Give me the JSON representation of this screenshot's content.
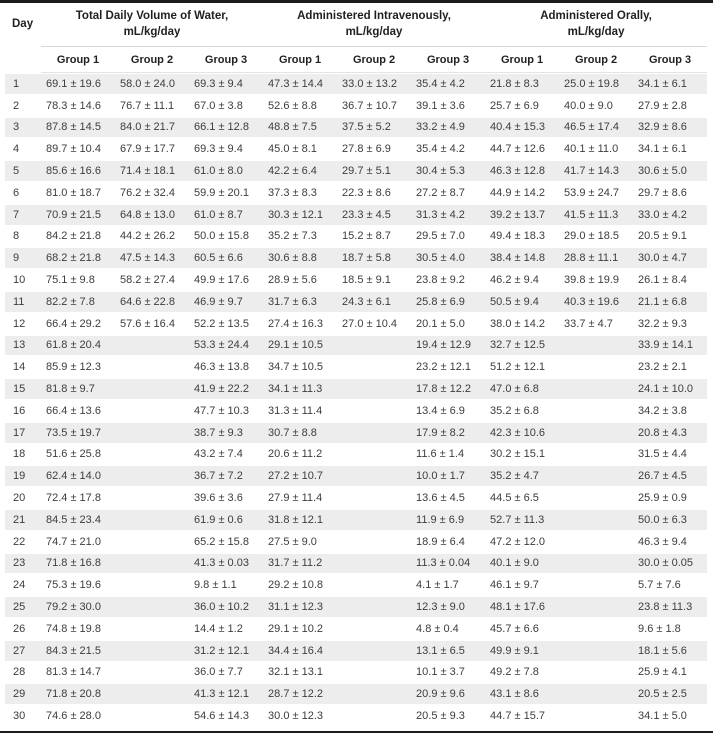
{
  "colors": {
    "top_border": "#1c1c1c",
    "bottom_border": "#1c1c1c",
    "stripe": "#ededed",
    "header_rule": "#d8d8d8",
    "header_text": "#221f20",
    "body_text": "#3d3d3d"
  },
  "table": {
    "day_header": "Day",
    "sections": [
      {
        "title": "Total Daily Volume of Water,",
        "subtitle": "mL/kg/day",
        "groups": [
          "Group 1",
          "Group 2",
          "Group 3"
        ]
      },
      {
        "title": "Administered Intravenously,",
        "subtitle": "mL/kg/day",
        "groups": [
          "Group 1",
          "Group 2",
          "Group 3"
        ]
      },
      {
        "title": "Administered Orally,",
        "subtitle": "mL/kg/day",
        "groups": [
          "Group 1",
          "Group 2",
          "Group 3"
        ]
      }
    ],
    "rows": [
      {
        "day": "1",
        "cells": [
          "69.1 ± 19.6",
          "58.0 ± 24.0",
          "69.3 ± 9.4",
          "47.3 ± 14.4",
          "33.0 ± 13.2",
          "35.4 ± 4.2",
          "21.8 ± 8.3",
          "25.0 ± 19.8",
          "34.1 ± 6.1"
        ]
      },
      {
        "day": "2",
        "cells": [
          "78.3 ± 14.6",
          "76.7 ± 11.1",
          "67.0 ± 3.8",
          "52.6 ± 8.8",
          "36.7 ± 10.7",
          "39.1 ± 3.6",
          "25.7 ± 6.9",
          "40.0 ± 9.0",
          "27.9 ± 2.8"
        ]
      },
      {
        "day": "3",
        "cells": [
          "87.8 ± 14.5",
          "84.0 ± 21.7",
          "66.1 ± 12.8",
          "48.8 ± 7.5",
          "37.5 ± 5.2",
          "33.2 ± 4.9",
          "40.4 ± 15.3",
          "46.5 ± 17.4",
          "32.9 ± 8.6"
        ]
      },
      {
        "day": "4",
        "cells": [
          "89.7 ± 10.4",
          "67.9 ± 17.7",
          "69.3 ± 9.4",
          "45.0 ± 8.1",
          "27.8 ± 6.9",
          "35.4 ± 4.2",
          "44.7 ± 12.6",
          "40.1 ± 11.0",
          "34.1 ± 6.1"
        ]
      },
      {
        "day": "5",
        "cells": [
          "85.6 ± 16.6",
          "71.4 ± 18.1",
          "61.0 ± 8.0",
          "42.2 ± 6.4",
          "29.7 ± 5.1",
          "30.4 ± 5.3",
          "46.3 ± 12.8",
          "41.7 ± 14.3",
          "30.6 ± 5.0"
        ]
      },
      {
        "day": "6",
        "cells": [
          "81.0 ± 18.7",
          "76.2 ± 32.4",
          "59.9 ± 20.1",
          "37.3 ± 8.3",
          "22.3 ± 8.6",
          "27.2 ± 8.7",
          "44.9 ± 14.2",
          "53.9 ± 24.7",
          "29.7 ± 8.6"
        ]
      },
      {
        "day": "7",
        "cells": [
          "70.9 ± 21.5",
          "64.8 ± 13.0",
          "61.0 ± 8.7",
          "30.3 ± 12.1",
          "23.3 ± 4.5",
          "31.3 ± 4.2",
          "39.2 ± 13.7",
          "41.5 ± 11.3",
          "33.0 ± 4.2"
        ]
      },
      {
        "day": "8",
        "cells": [
          "84.2 ± 21.8",
          "44.2 ± 26.2",
          "50.0 ± 15.8",
          "35.2 ± 7.3",
          "15.2 ± 8.7",
          "29.5 ± 7.0",
          "49.4 ± 18.3",
          "29.0 ± 18.5",
          "20.5 ± 9.1"
        ]
      },
      {
        "day": "9",
        "cells": [
          "68.2 ± 21.8",
          "47.5 ± 14.3",
          "60.5 ± 6.6",
          "30.6 ± 8.8",
          "18.7 ± 5.8",
          "30.5 ± 4.0",
          "38.4 ± 14.8",
          "28.8 ± 11.1",
          "30.0 ± 4.7"
        ]
      },
      {
        "day": "10",
        "cells": [
          "75.1 ± 9.8",
          "58.2 ± 27.4",
          "49.9 ± 17.6",
          "28.9 ± 5.6",
          "18.5 ± 9.1",
          "23.8 ± 9.2",
          "46.2 ± 9.4",
          "39.8 ± 19.9",
          "26.1 ± 8.4"
        ]
      },
      {
        "day": "11",
        "cells": [
          "82.2 ± 7.8",
          "64.6 ± 22.8",
          "46.9 ± 9.7",
          "31.7 ± 6.3",
          "24.3 ± 6.1",
          "25.8 ± 6.9",
          "50.5 ± 9.4",
          "40.3 ± 19.6",
          "21.1 ± 6.8"
        ]
      },
      {
        "day": "12",
        "cells": [
          "66.4 ± 29.2",
          "57.6 ± 16.4",
          "52.2 ± 13.5",
          "27.4 ± 16.3",
          "27.0 ± 10.4",
          "20.1 ± 5.0",
          "38.0 ± 14.2",
          "33.7 ± 4.7",
          "32.2 ± 9.3"
        ]
      },
      {
        "day": "13",
        "cells": [
          "61.8 ± 20.4",
          "",
          "53.3 ± 24.4",
          "29.1 ± 10.5",
          "",
          "19.4 ± 12.9",
          "32.7 ± 12.5",
          "",
          "33.9 ± 14.1"
        ]
      },
      {
        "day": "14",
        "cells": [
          "85.9 ± 12.3",
          "",
          "46.3 ± 13.8",
          "34.7 ± 10.5",
          "",
          "23.2 ± 12.1",
          "51.2 ± 12.1",
          "",
          "23.2 ± 2.1"
        ]
      },
      {
        "day": "15",
        "cells": [
          "81.8 ± 9.7",
          "",
          "41.9 ± 22.2",
          "34.1 ± 11.3",
          "",
          "17.8 ± 12.2",
          "47.0 ± 6.8",
          "",
          "24.1 ± 10.0"
        ]
      },
      {
        "day": "16",
        "cells": [
          "66.4 ± 13.6",
          "",
          "47.7 ± 10.3",
          "31.3 ± 11.4",
          "",
          "13.4 ± 6.9",
          "35.2 ± 6.8",
          "",
          "34.2 ± 3.8"
        ]
      },
      {
        "day": "17",
        "cells": [
          "73.5 ± 19.7",
          "",
          "38.7 ± 9.3",
          "30.7 ± 8.8",
          "",
          "17.9 ± 8.2",
          "42.3 ± 10.6",
          "",
          "20.8 ± 4.3"
        ]
      },
      {
        "day": "18",
        "cells": [
          "51.6 ± 25.8",
          "",
          "43.2 ± 7.4",
          "20.6 ± 11.2",
          "",
          "11.6 ± 1.4",
          "30.2 ± 15.1",
          "",
          "31.5 ± 4.4"
        ]
      },
      {
        "day": "19",
        "cells": [
          "62.4 ± 14.0",
          "",
          "36.7 ± 7.2",
          "27.2 ± 10.7",
          "",
          "10.0 ± 1.7",
          "35.2 ± 4.7",
          "",
          "26.7 ± 4.5"
        ]
      },
      {
        "day": "20",
        "cells": [
          "72.4 ± 17.8",
          "",
          "39.6 ± 3.6",
          "27.9 ± 11.4",
          "",
          "13.6 ± 4.5",
          "44.5 ± 6.5",
          "",
          "25.9 ± 0.9"
        ]
      },
      {
        "day": "21",
        "cells": [
          "84.5 ± 23.4",
          "",
          "61.9 ± 0.6",
          "31.8 ± 12.1",
          "",
          "11.9 ± 6.9",
          "52.7 ± 11.3",
          "",
          "50.0 ± 6.3"
        ]
      },
      {
        "day": "22",
        "cells": [
          "74.7 ± 21.0",
          "",
          "65.2 ± 15.8",
          "27.5 ± 9.0",
          "",
          "18.9 ± 6.4",
          "47.2 ± 12.0",
          "",
          "46.3 ± 9.4"
        ]
      },
      {
        "day": "23",
        "cells": [
          "71.8 ± 16.8",
          "",
          "41.3 ± 0.03",
          "31.7 ± 11.2",
          "",
          "11.3 ± 0.04",
          "40.1 ± 9.0",
          "",
          "30.0 ± 0.05"
        ]
      },
      {
        "day": "24",
        "cells": [
          "75.3 ± 19.6",
          "",
          "9.8 ± 1.1",
          "29.2 ± 10.8",
          "",
          "4.1 ± 1.7",
          "46.1 ± 9.7",
          "",
          "5.7 ± 7.6"
        ]
      },
      {
        "day": "25",
        "cells": [
          "79.2 ± 30.0",
          "",
          "36.0 ± 10.2",
          "31.1 ± 12.3",
          "",
          "12.3 ± 9.0",
          "48.1 ± 17.6",
          "",
          "23.8 ± 11.3"
        ]
      },
      {
        "day": "26",
        "cells": [
          "74.8 ± 19.8",
          "",
          "14.4 ± 1.2",
          "29.1 ± 10.2",
          "",
          "4.8 ± 0.4",
          "45.7 ± 6.6",
          "",
          "9.6 ± 1.8"
        ]
      },
      {
        "day": "27",
        "cells": [
          "84.3 ± 21.5",
          "",
          "31.2 ± 12.1",
          "34.4 ± 16.4",
          "",
          "13.1 ± 6.5",
          "49.9 ± 9.1",
          "",
          "18.1 ± 5.6"
        ]
      },
      {
        "day": "28",
        "cells": [
          "81.3 ± 14.7",
          "",
          "36.0 ± 7.7",
          "32.1 ± 13.1",
          "",
          "10.1 ± 3.7",
          "49.2 ± 7.8",
          "",
          "25.9 ± 4.1"
        ]
      },
      {
        "day": "29",
        "cells": [
          "71.8 ± 20.8",
          "",
          "41.3 ± 12.1",
          "28.7 ± 12.2",
          "",
          "20.9 ± 9.6",
          "43.1 ± 8.6",
          "",
          "20.5 ± 2.5"
        ]
      },
      {
        "day": "30",
        "cells": [
          "74.6 ± 28.0",
          "",
          "54.6 ± 14.3",
          "30.0 ± 12.3",
          "",
          "20.5 ± 9.3",
          "44.7 ± 15.7",
          "",
          "34.1 ± 5.0"
        ]
      }
    ]
  }
}
